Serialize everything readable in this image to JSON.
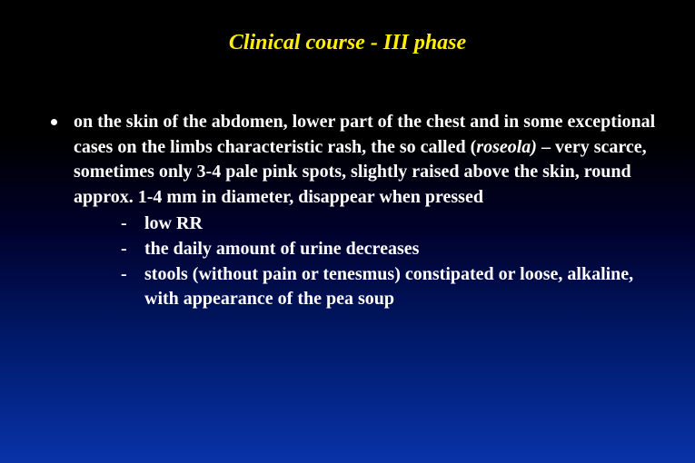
{
  "title": {
    "text": "Clinical course - III phase",
    "color": "#fff000",
    "fontsize_pt": 24
  },
  "body": {
    "text_color": "#ffffff",
    "fontsize_pt": 20,
    "line_height": 1.38
  },
  "background_gradient": [
    "#000000",
    "#000000",
    "#00012c",
    "#001b6e",
    "#0933a8"
  ],
  "main_bullet": {
    "seg0": "on the skin of the abdomen, lower part of the chest and in some exceptional cases on the limbs characteristic rash, the so called ",
    "seg1_italic_paren_open": "(",
    "seg1_italic_word": "roseola)",
    "seg2": " – very scarce, sometimes only 3-4 pale pink spots, slightly raised above the skin, round approx. 1-4 mm in diameter, disappear when pressed"
  },
  "sub_bullets": [
    "low RR",
    "the daily amount of urine decreases",
    "stools (without pain or tenesmus) constipated or loose, alkaline, with appearance of the pea soup"
  ]
}
